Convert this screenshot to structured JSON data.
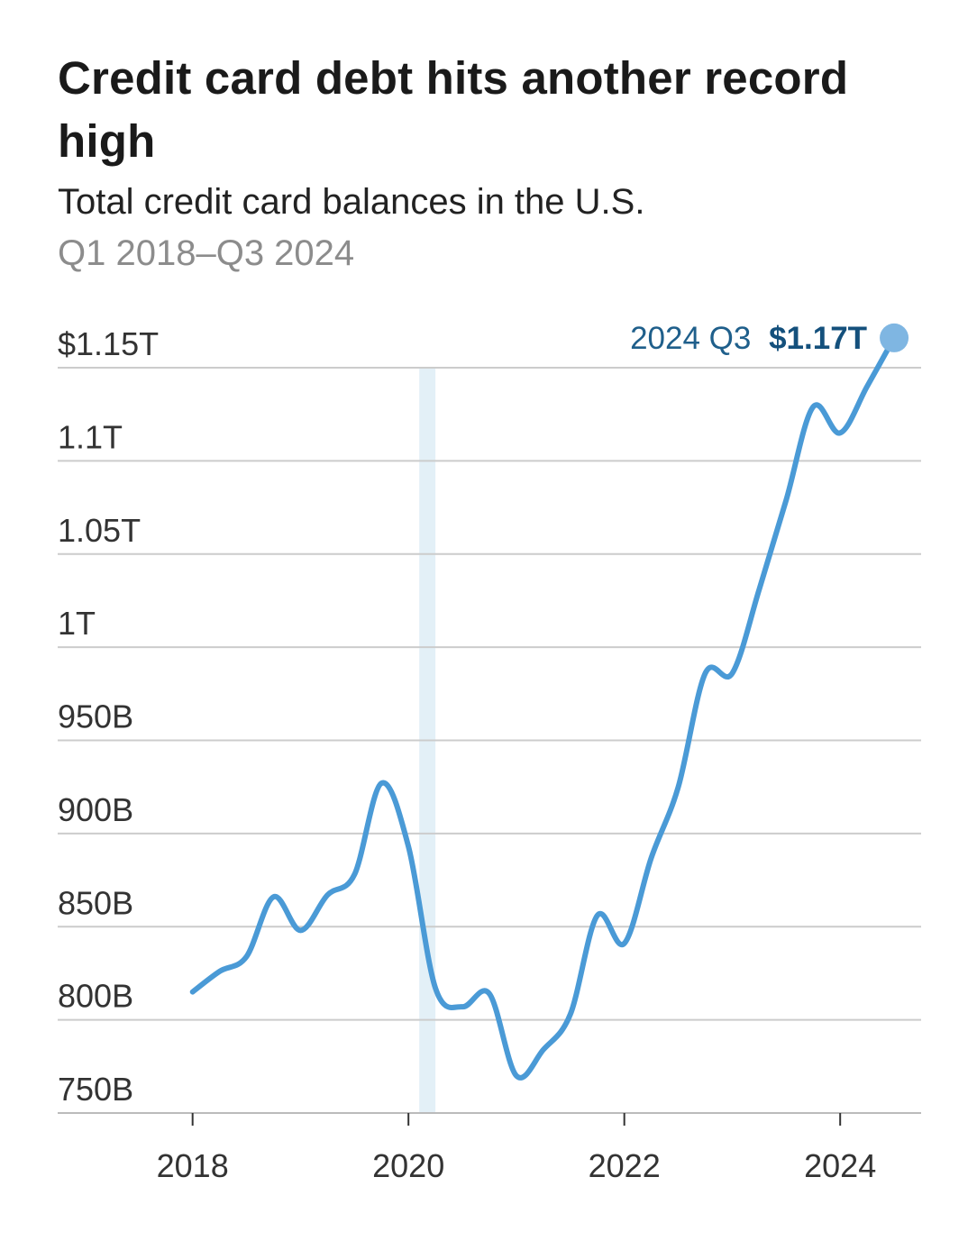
{
  "title": "Credit card debt hits another record high",
  "subtitle": "Total credit card balances in the U.S.",
  "date_range": "Q1 2018–Q3 2024",
  "colors": {
    "line": "#4a9ad6",
    "endpoint": "#7fb6e2",
    "recession_band": "#e3f0f7",
    "grid": "#cccccc",
    "annotation": "#1f5f8b"
  },
  "chart_data": {
    "type": "line",
    "title": "Credit card debt hits another record high",
    "subtitle": "Total credit card balances in the U.S.",
    "xlabel": "",
    "ylabel": "",
    "ylim": [
      750,
      1150
    ],
    "xlim": [
      2016.75,
      2024.75
    ],
    "y_ticks": [
      {
        "value": 750,
        "label": "750B"
      },
      {
        "value": 800,
        "label": "800B"
      },
      {
        "value": 850,
        "label": "850B"
      },
      {
        "value": 900,
        "label": "900B"
      },
      {
        "value": 950,
        "label": "950B"
      },
      {
        "value": 1000,
        "label": "1T"
      },
      {
        "value": 1050,
        "label": "1.05T"
      },
      {
        "value": 1100,
        "label": "1.1T"
      },
      {
        "value": 1150,
        "label": "$1.15T"
      }
    ],
    "x_ticks": [
      {
        "value": 2018,
        "label": "2018"
      },
      {
        "value": 2020,
        "label": "2020"
      },
      {
        "value": 2022,
        "label": "2022"
      },
      {
        "value": 2024,
        "label": "2024"
      }
    ],
    "shaded_period": {
      "start": 2020.1,
      "end": 2020.25
    },
    "series": [
      {
        "name": "Total credit card balances",
        "x": [
          2018.0,
          2018.25,
          2018.5,
          2018.75,
          2019.0,
          2019.25,
          2019.5,
          2019.75,
          2020.0,
          2020.25,
          2020.5,
          2020.75,
          2021.0,
          2021.25,
          2021.5,
          2021.75,
          2022.0,
          2022.25,
          2022.5,
          2022.75,
          2023.0,
          2023.25,
          2023.5,
          2023.75,
          2024.0,
          2024.25,
          2024.5
        ],
        "values": [
          815,
          826,
          834,
          866,
          848,
          867,
          878,
          927,
          893,
          817,
          807,
          814,
          770,
          784,
          803,
          856,
          841,
          887,
          925,
          986,
          986,
          1031,
          1079,
          1129,
          1115,
          1140,
          1166
        ]
      }
    ],
    "annotation": {
      "period": "2024 Q3",
      "value_label": "$1.17T"
    }
  }
}
